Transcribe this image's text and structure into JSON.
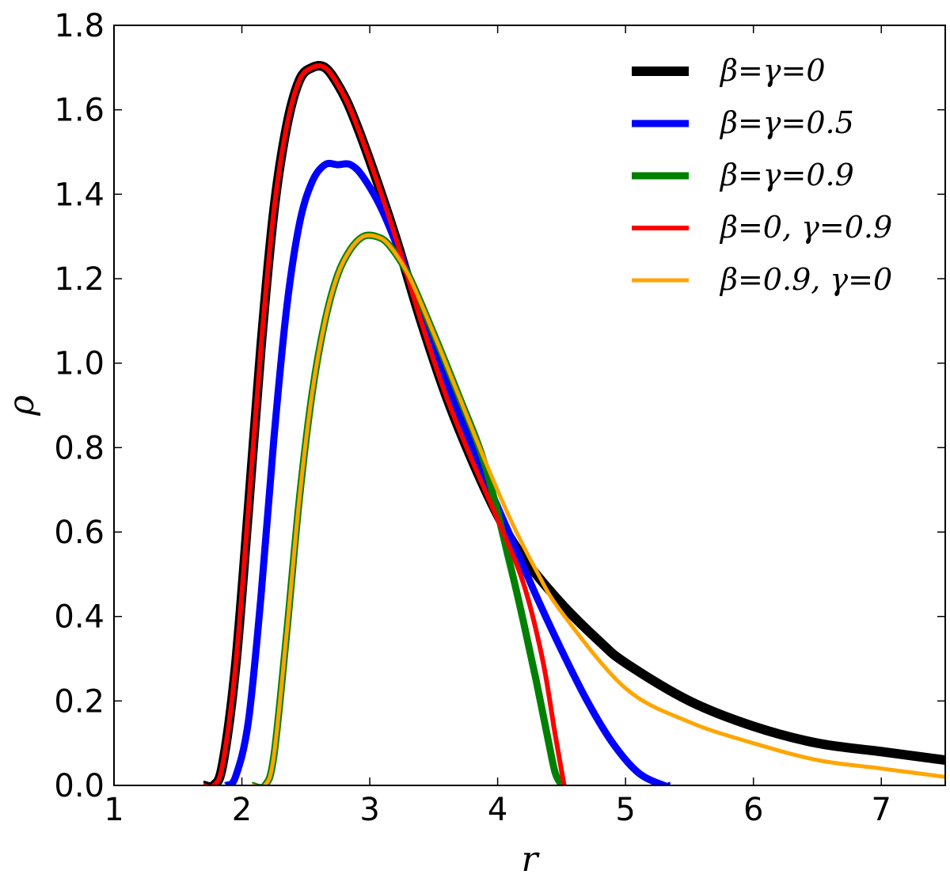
{
  "chart_data": {
    "type": "line",
    "title": "",
    "xlabel": "r",
    "ylabel": "ρ",
    "xlim": [
      1,
      7.5
    ],
    "ylim": [
      0,
      1.8
    ],
    "xticks": [
      1,
      2,
      3,
      4,
      5,
      6,
      7
    ],
    "yticks": [
      0.0,
      0.2,
      0.4,
      0.6,
      0.8,
      1.0,
      1.2,
      1.4,
      1.6,
      1.8
    ],
    "xtick_labels": [
      "1",
      "2",
      "3",
      "4",
      "5",
      "6",
      "7"
    ],
    "ytick_labels": [
      "0.0",
      "0.2",
      "0.4",
      "0.6",
      "0.8",
      "1.0",
      "1.2",
      "1.4",
      "1.6",
      "1.8"
    ],
    "grid": false,
    "legend_position": "top-right",
    "series": [
      {
        "name": "β=γ=0",
        "color": "#000000",
        "width": 12,
        "x": [
          1.7,
          1.78,
          1.85,
          1.95,
          2.05,
          2.15,
          2.25,
          2.35,
          2.45,
          2.55,
          2.65,
          2.75,
          2.85,
          3.0,
          3.2,
          3.4,
          3.6,
          3.8,
          4.0,
          4.2,
          4.5,
          4.8,
          5.0,
          5.5,
          6.0,
          6.5,
          7.0,
          7.5
        ],
        "y": [
          0.0,
          0.0,
          0.05,
          0.28,
          0.65,
          1.04,
          1.36,
          1.56,
          1.67,
          1.7,
          1.7,
          1.66,
          1.6,
          1.48,
          1.3,
          1.1,
          0.92,
          0.77,
          0.64,
          0.54,
          0.43,
          0.34,
          0.29,
          0.2,
          0.14,
          0.1,
          0.08,
          0.06
        ]
      },
      {
        "name": "β=γ=0.5",
        "color": "#0000ff",
        "width": 9,
        "x": [
          1.88,
          1.95,
          2.05,
          2.15,
          2.25,
          2.35,
          2.45,
          2.55,
          2.65,
          2.75,
          2.85,
          2.95,
          3.1,
          3.3,
          3.5,
          3.7,
          3.9,
          4.1,
          4.3,
          4.5,
          4.7,
          4.9,
          5.1,
          5.3,
          5.35
        ],
        "y": [
          0.0,
          0.02,
          0.15,
          0.45,
          0.82,
          1.13,
          1.33,
          1.43,
          1.47,
          1.47,
          1.47,
          1.44,
          1.36,
          1.21,
          1.04,
          0.88,
          0.73,
          0.59,
          0.45,
          0.32,
          0.2,
          0.1,
          0.03,
          0.0,
          0.0
        ]
      },
      {
        "name": "β=γ=0.9",
        "color": "#008000",
        "width": 9,
        "x": [
          2.08,
          2.18,
          2.25,
          2.35,
          2.45,
          2.55,
          2.65,
          2.75,
          2.85,
          2.95,
          3.05,
          3.15,
          3.3,
          3.5,
          3.7,
          3.9,
          4.1,
          4.2,
          4.3,
          4.4,
          4.45,
          4.5
        ],
        "y": [
          0.0,
          0.0,
          0.07,
          0.36,
          0.68,
          0.93,
          1.1,
          1.21,
          1.27,
          1.3,
          1.3,
          1.28,
          1.21,
          1.07,
          0.92,
          0.76,
          0.52,
          0.39,
          0.25,
          0.1,
          0.03,
          0.0
        ]
      },
      {
        "name": "β=0, γ=0.9",
        "color": "#ff0000",
        "width": 6,
        "x": [
          1.7,
          1.78,
          1.85,
          1.95,
          2.05,
          2.15,
          2.25,
          2.35,
          2.45,
          2.55,
          2.65,
          2.75,
          2.85,
          3.0,
          3.2,
          3.4,
          3.6,
          3.8,
          4.0,
          4.2,
          4.35,
          4.45,
          4.52
        ],
        "y": [
          0.0,
          0.0,
          0.05,
          0.28,
          0.65,
          1.04,
          1.36,
          1.56,
          1.67,
          1.7,
          1.7,
          1.66,
          1.6,
          1.48,
          1.3,
          1.1,
          0.92,
          0.77,
          0.63,
          0.48,
          0.3,
          0.12,
          0.0
        ]
      },
      {
        "name": "β=0.9, γ=0",
        "color": "#ffa500",
        "width": 5,
        "x": [
          2.08,
          2.18,
          2.25,
          2.35,
          2.45,
          2.55,
          2.65,
          2.75,
          2.85,
          2.95,
          3.05,
          3.15,
          3.3,
          3.5,
          3.7,
          3.9,
          4.1,
          4.3,
          4.5,
          5.0,
          5.5,
          6.0,
          6.5,
          7.0,
          7.5
        ],
        "y": [
          0.0,
          0.0,
          0.07,
          0.36,
          0.68,
          0.93,
          1.1,
          1.21,
          1.27,
          1.3,
          1.3,
          1.28,
          1.21,
          1.07,
          0.92,
          0.77,
          0.63,
          0.51,
          0.41,
          0.23,
          0.15,
          0.1,
          0.06,
          0.04,
          0.02
        ]
      }
    ]
  }
}
